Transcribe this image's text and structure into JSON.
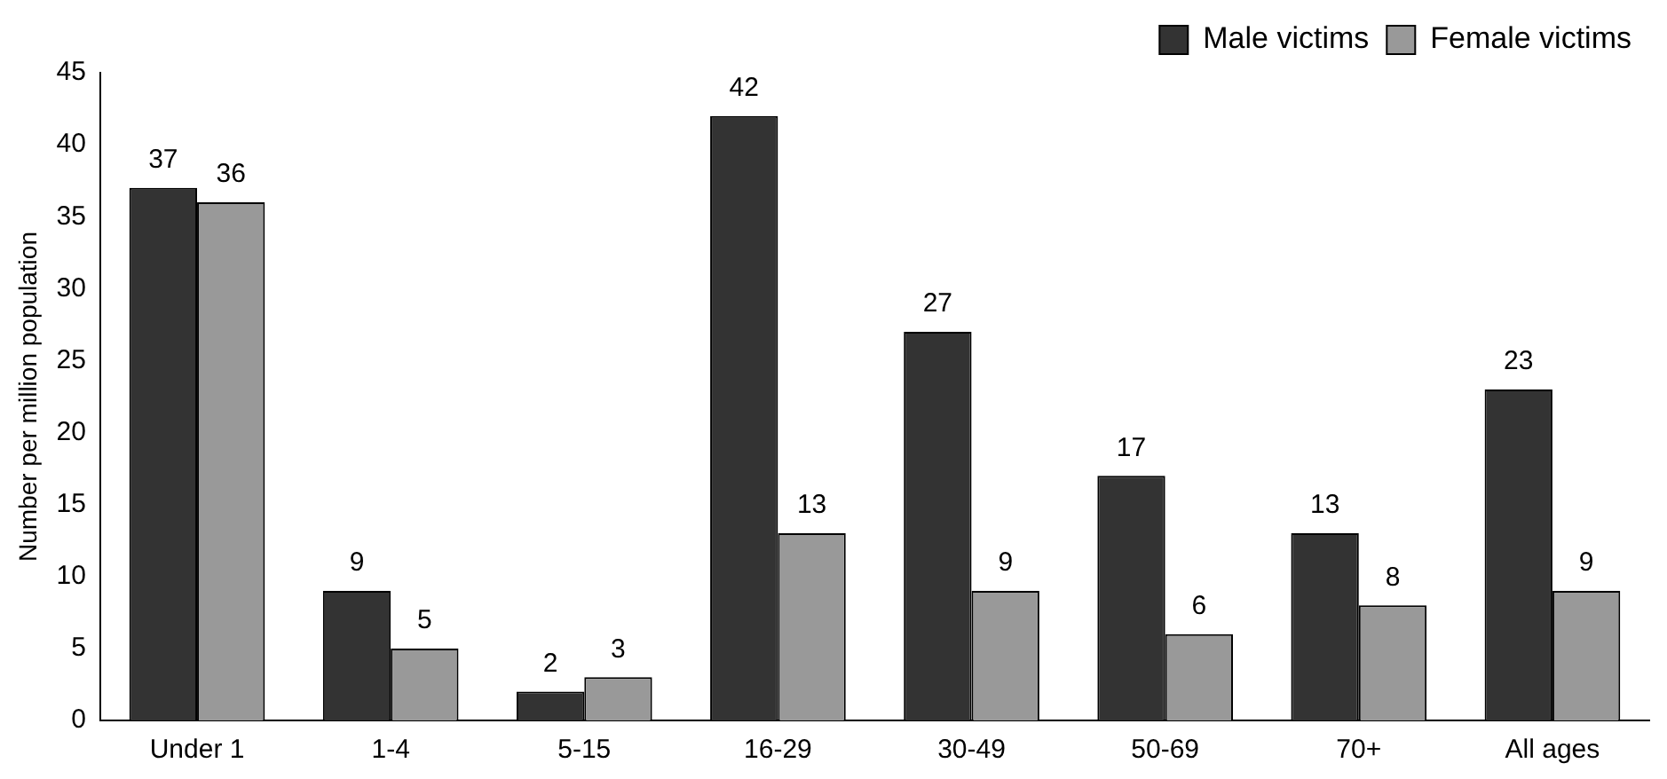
{
  "chart_data": {
    "type": "bar",
    "ylabel": "Number per million population",
    "categories": [
      "Under 1",
      "1-4",
      "5-15",
      "16-29",
      "30-49",
      "50-69",
      "70+",
      "All ages"
    ],
    "series": [
      {
        "name": "Male victims",
        "color": "#333333",
        "values": [
          37,
          9,
          2,
          42,
          27,
          17,
          13,
          23
        ]
      },
      {
        "name": "Female victims",
        "color": "#999999",
        "values": [
          36,
          5,
          3,
          13,
          9,
          6,
          8,
          9
        ]
      }
    ],
    "ylim": [
      0,
      45
    ],
    "yticks": [
      0,
      5,
      10,
      15,
      20,
      25,
      30,
      35,
      40,
      45
    ],
    "grid": false,
    "legend": "top right",
    "data_labels": true
  }
}
